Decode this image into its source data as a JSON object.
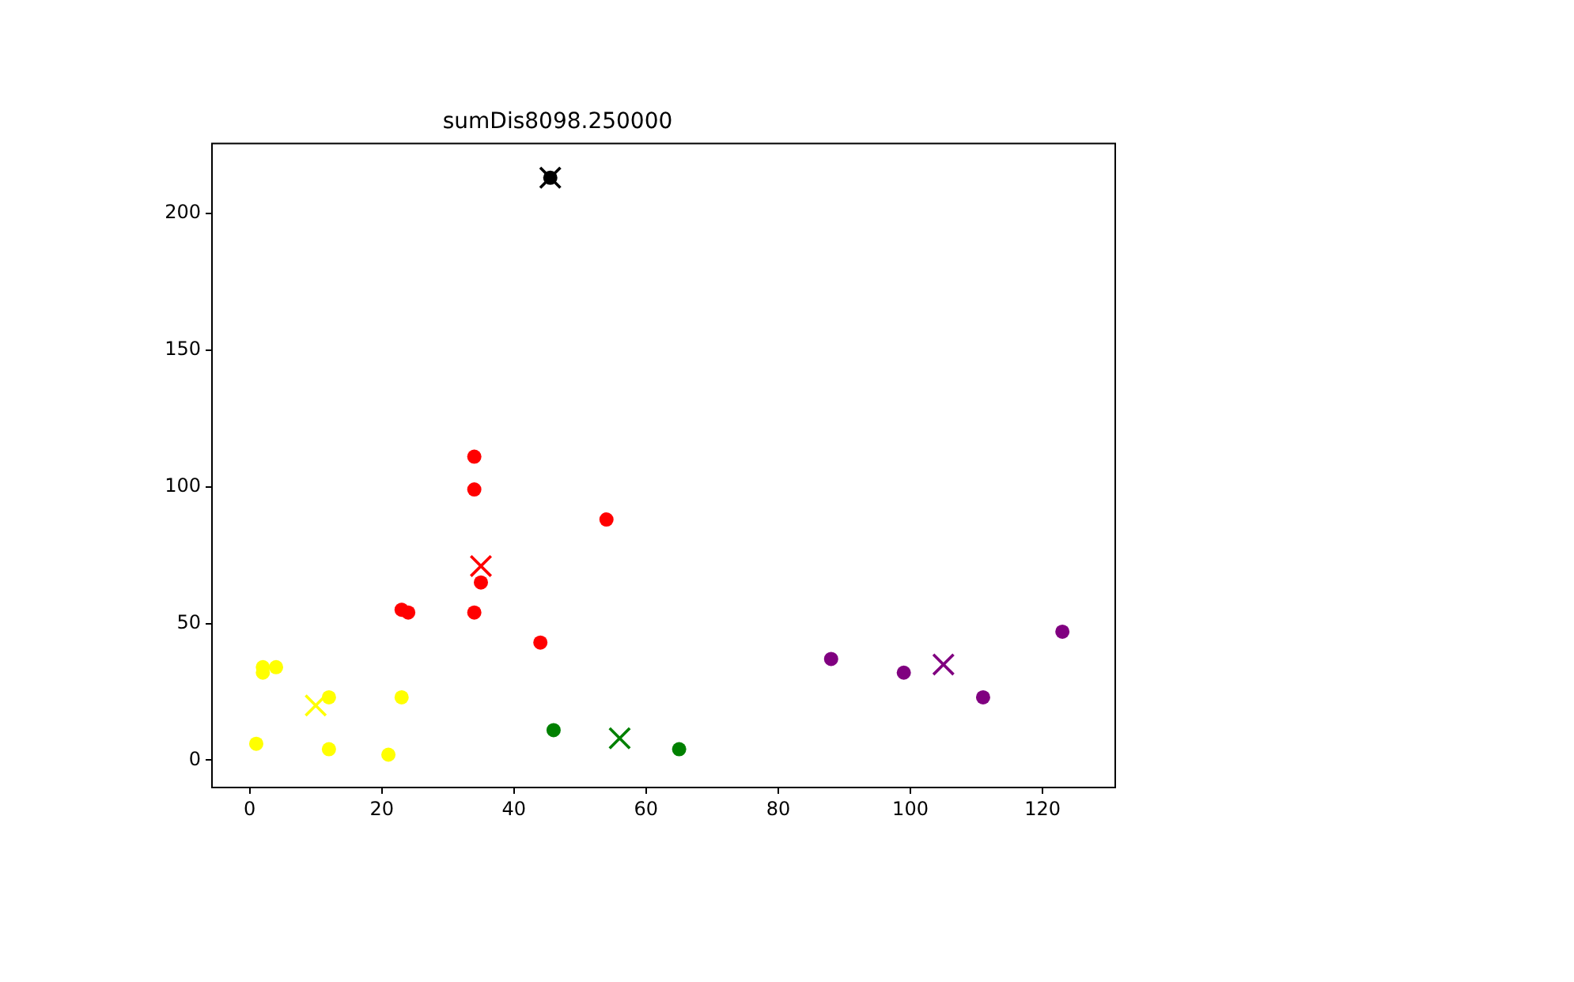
{
  "chart_data": {
    "type": "scatter",
    "title": "sumDis8098.250000",
    "xlim": [
      -5.7,
      131
    ],
    "ylim": [
      -10,
      225.5
    ],
    "xticks": [
      0,
      20,
      40,
      60,
      80,
      100,
      120
    ],
    "yticks": [
      0,
      50,
      100,
      150,
      200
    ],
    "grid": false,
    "legend": false,
    "marker": "circle",
    "series": [
      {
        "color": "#ffff00",
        "x": [
          1,
          2,
          2,
          4,
          12,
          12,
          21,
          23
        ],
        "values": [
          6,
          32,
          34,
          34,
          23,
          4,
          2,
          23
        ]
      },
      {
        "color": "#ff0000",
        "x": [
          34,
          34,
          54,
          35,
          23,
          24,
          34,
          44
        ],
        "values": [
          111,
          99,
          88,
          65,
          55,
          54,
          54,
          43
        ]
      },
      {
        "color": "#008000",
        "x": [
          46,
          65
        ],
        "values": [
          11,
          4
        ]
      },
      {
        "color": "#800080",
        "x": [
          88,
          99,
          111,
          123
        ],
        "values": [
          37,
          32,
          23,
          47
        ]
      },
      {
        "color": "#000000",
        "x": [
          45.5
        ],
        "values": [
          213
        ]
      },
      {
        "color": "#ffff00",
        "marker": "cross",
        "x": [
          10
        ],
        "values": [
          20
        ]
      },
      {
        "color": "#ff0000",
        "marker": "cross",
        "x": [
          35
        ],
        "values": [
          71
        ]
      },
      {
        "color": "#008000",
        "marker": "cross",
        "x": [
          56
        ],
        "values": [
          8
        ]
      },
      {
        "color": "#800080",
        "marker": "cross",
        "x": [
          105
        ],
        "values": [
          35
        ]
      },
      {
        "color": "#000000",
        "marker": "cross",
        "x": [
          45.5
        ],
        "values": [
          213
        ]
      }
    ]
  }
}
